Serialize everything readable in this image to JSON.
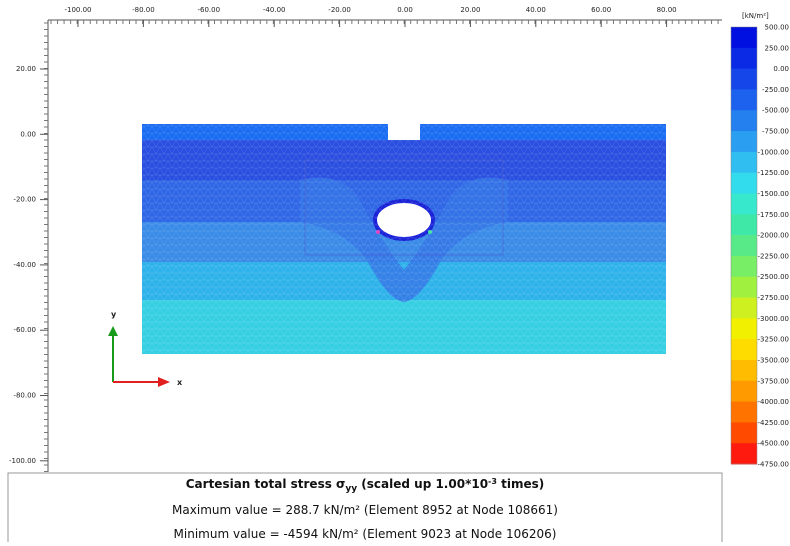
{
  "axes": {
    "top_labels": [
      "-100.00",
      "-80.00",
      "-60.00",
      "-40.00",
      "-20.00",
      "0.00",
      "20.00",
      "40.00",
      "60.00",
      "80.00"
    ],
    "left_labels": [
      "20.00",
      "0.00",
      "-20.00",
      "-40.00",
      "-60.00",
      "-80.00",
      "-100.00"
    ],
    "x_label": "x",
    "y_label": "y"
  },
  "legend": {
    "unit": "[kN/m²]",
    "labels": [
      "500.00",
      "250.00",
      "0.00",
      "-250.00",
      "-500.00",
      "-750.00",
      "-1000.00",
      "-1250.00",
      "-1500.00",
      "-1750.00",
      "-2000.00",
      "-2250.00",
      "-2500.00",
      "-2750.00",
      "-3000.00",
      "-3250.00",
      "-3500.00",
      "-3750.00",
      "-4000.00",
      "-4250.00",
      "-4500.00",
      "-4750.00"
    ],
    "colors": [
      "#0010e0",
      "#0a2ae6",
      "#1446ea",
      "#1c62ee",
      "#2480ee",
      "#2a9ef0",
      "#30bef0",
      "#33dcec",
      "#38e8cc",
      "#40e8a8",
      "#58ea88",
      "#78ee66",
      "#a0f040",
      "#cef020",
      "#f0f000",
      "#ffdc00",
      "#ffbc00",
      "#ff9a00",
      "#ff7400",
      "#ff4a00",
      "#ff1a10"
    ]
  },
  "caption": {
    "title_main": "Cartesian total stress σ",
    "title_sub": "yy",
    "title_rest": " (scaled up 1.00*10",
    "title_sup": "-3",
    "title_end": " times)",
    "max": "Maximum value = 288.7 kN/m² (Element 8952 at Node 108661)",
    "min": "Minimum value = -4594 kN/m² (Element 9023 at Node 106206)"
  }
}
